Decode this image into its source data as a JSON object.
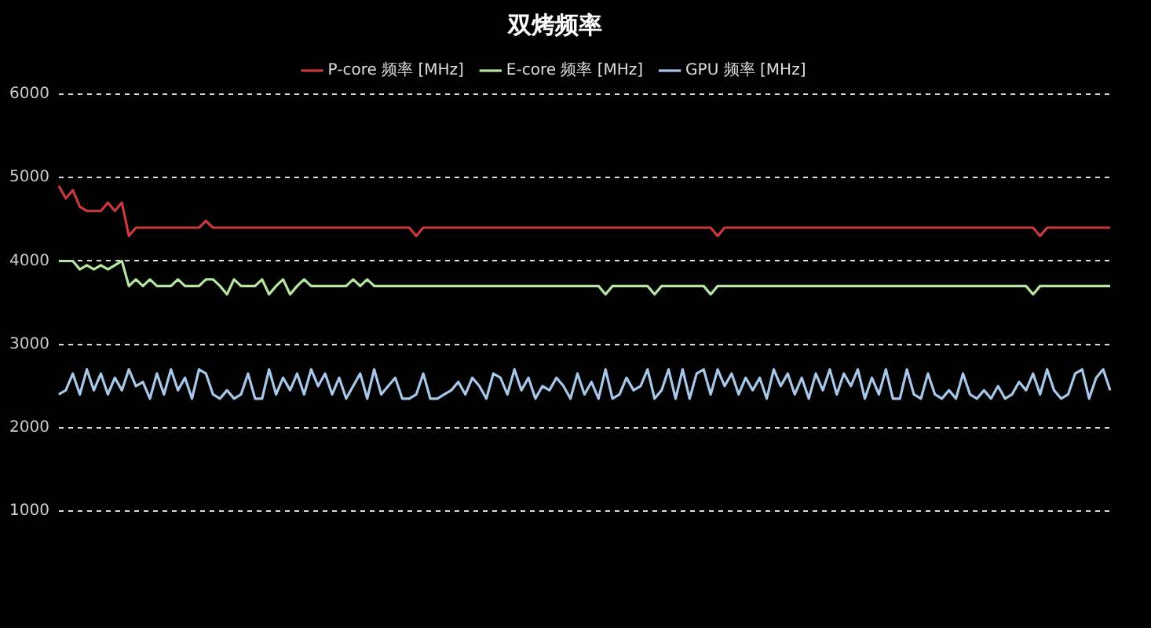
{
  "chart_data": {
    "type": "line",
    "title": "双烤频率",
    "categories": [
      null,
      null,
      null,
      null,
      null,
      null,
      null,
      null,
      null,
      null,
      null,
      null,
      null,
      null,
      null,
      null,
      null,
      null,
      null,
      null,
      null,
      null,
      null,
      null,
      null,
      null,
      null,
      null,
      null,
      null,
      null,
      null,
      null,
      null,
      null,
      null,
      null,
      null,
      null,
      null,
      null,
      null,
      null,
      null,
      null,
      null,
      null,
      null,
      null,
      null,
      null,
      null,
      null,
      null,
      null,
      null,
      null,
      null,
      null,
      null,
      null,
      null,
      null,
      null,
      null,
      null,
      null,
      null,
      null,
      null,
      null,
      null,
      null,
      null,
      null,
      null,
      null,
      null,
      null,
      null,
      null,
      null,
      null,
      null,
      null,
      null,
      null,
      null,
      null,
      null,
      null,
      null,
      null,
      null,
      null,
      null,
      null,
      null,
      null,
      null,
      null,
      null,
      null,
      null,
      null,
      null,
      null,
      null,
      null,
      null,
      null,
      null,
      null,
      null,
      null,
      null,
      null,
      null,
      null,
      null,
      null,
      null,
      null,
      null,
      null,
      null,
      null,
      null,
      null,
      null,
      null,
      null,
      null,
      null,
      null,
      null,
      null,
      null,
      null,
      null,
      null,
      null,
      null,
      null,
      null,
      null,
      null,
      null,
      null,
      null,
      null
    ],
    "series": [
      {
        "name": "P-core 频率 [MHz]",
        "color": "#c8393b",
        "values": [
          4900,
          4750,
          4850,
          4650,
          4600,
          4600,
          4600,
          4700,
          4600,
          4700,
          4300,
          4400,
          4400,
          4400,
          4400,
          4400,
          4400,
          4400,
          4400,
          4400,
          4400,
          4480,
          4400,
          4400,
          4400,
          4400,
          4400,
          4400,
          4400,
          4400,
          4400,
          4400,
          4400,
          4400,
          4400,
          4400,
          4400,
          4400,
          4400,
          4400,
          4400,
          4400,
          4400,
          4400,
          4400,
          4400,
          4400,
          4400,
          4400,
          4400,
          4400,
          4300,
          4400,
          4400,
          4400,
          4400,
          4400,
          4400,
          4400,
          4400,
          4400,
          4400,
          4400,
          4400,
          4400,
          4400,
          4400,
          4400,
          4400,
          4400,
          4400,
          4400,
          4400,
          4400,
          4400,
          4400,
          4400,
          4400,
          4400,
          4400,
          4400,
          4400,
          4400,
          4400,
          4400,
          4400,
          4400,
          4400,
          4400,
          4400,
          4400,
          4400,
          4400,
          4400,
          4300,
          4400,
          4400,
          4400,
          4400,
          4400,
          4400,
          4400,
          4400,
          4400,
          4400,
          4400,
          4400,
          4400,
          4400,
          4400,
          4400,
          4400,
          4400,
          4400,
          4400,
          4400,
          4400,
          4400,
          4400,
          4400,
          4400,
          4400,
          4400,
          4400,
          4400,
          4400,
          4400,
          4400,
          4400,
          4400,
          4400,
          4400,
          4400,
          4400,
          4400,
          4400,
          4400,
          4400,
          4400,
          4400,
          4300,
          4400,
          4400,
          4400,
          4400,
          4400,
          4400,
          4400,
          4400,
          4400,
          4400
        ]
      },
      {
        "name": "E-core 频率 [MHz]",
        "color": "#b5e5a0",
        "values": [
          4000,
          4000,
          4000,
          3900,
          3950,
          3900,
          3950,
          3900,
          3950,
          4000,
          3700,
          3780,
          3700,
          3780,
          3700,
          3700,
          3700,
          3780,
          3700,
          3700,
          3700,
          3780,
          3780,
          3700,
          3600,
          3780,
          3700,
          3700,
          3700,
          3780,
          3600,
          3700,
          3780,
          3600,
          3700,
          3780,
          3700,
          3700,
          3700,
          3700,
          3700,
          3700,
          3780,
          3700,
          3780,
          3700,
          3700,
          3700,
          3700,
          3700,
          3700,
          3700,
          3700,
          3700,
          3700,
          3700,
          3700,
          3700,
          3700,
          3700,
          3700,
          3700,
          3700,
          3700,
          3700,
          3700,
          3700,
          3700,
          3700,
          3700,
          3700,
          3700,
          3700,
          3700,
          3700,
          3700,
          3700,
          3700,
          3600,
          3700,
          3700,
          3700,
          3700,
          3700,
          3700,
          3600,
          3700,
          3700,
          3700,
          3700,
          3700,
          3700,
          3700,
          3600,
          3700,
          3700,
          3700,
          3700,
          3700,
          3700,
          3700,
          3700,
          3700,
          3700,
          3700,
          3700,
          3700,
          3700,
          3700,
          3700,
          3700,
          3700,
          3700,
          3700,
          3700,
          3700,
          3700,
          3700,
          3700,
          3700,
          3700,
          3700,
          3700,
          3700,
          3700,
          3700,
          3700,
          3700,
          3700,
          3700,
          3700,
          3700,
          3700,
          3700,
          3700,
          3700,
          3700,
          3700,
          3700,
          3600,
          3700,
          3700,
          3700,
          3700,
          3700,
          3700,
          3700,
          3700,
          3700,
          3700,
          3700
        ]
      },
      {
        "name": "GPU 频率 [MHz]",
        "color": "#a8c8ea",
        "values": [
          2400,
          2450,
          2650,
          2400,
          2700,
          2450,
          2650,
          2400,
          2600,
          2450,
          2700,
          2500,
          2550,
          2350,
          2650,
          2400,
          2700,
          2450,
          2600,
          2350,
          2700,
          2650,
          2400,
          2350,
          2450,
          2350,
          2400,
          2650,
          2350,
          2350,
          2700,
          2400,
          2600,
          2450,
          2650,
          2400,
          2700,
          2500,
          2650,
          2400,
          2600,
          2350,
          2500,
          2650,
          2350,
          2700,
          2400,
          2500,
          2600,
          2350,
          2350,
          2400,
          2650,
          2350,
          2350,
          2400,
          2450,
          2550,
          2400,
          2600,
          2500,
          2350,
          2650,
          2600,
          2400,
          2700,
          2450,
          2600,
          2350,
          2500,
          2450,
          2600,
          2500,
          2350,
          2650,
          2400,
          2550,
          2350,
          2700,
          2350,
          2400,
          2600,
          2450,
          2500,
          2700,
          2350,
          2450,
          2700,
          2350,
          2700,
          2350,
          2650,
          2700,
          2400,
          2700,
          2500,
          2650,
          2400,
          2600,
          2450,
          2600,
          2350,
          2700,
          2500,
          2650,
          2400,
          2600,
          2350,
          2650,
          2450,
          2700,
          2400,
          2650,
          2500,
          2700,
          2350,
          2600,
          2400,
          2700,
          2350,
          2350,
          2700,
          2400,
          2350,
          2650,
          2400,
          2350,
          2450,
          2350,
          2650,
          2400,
          2350,
          2450,
          2350,
          2500,
          2350,
          2400,
          2550,
          2450,
          2650,
          2400,
          2700,
          2450,
          2350,
          2400,
          2650,
          2700,
          2350,
          2600,
          2700,
          2450
        ]
      }
    ],
    "ylim": [
      1000,
      6000
    ],
    "yticks": [
      1000,
      2000,
      3000,
      4000,
      5000,
      6000
    ],
    "grid": "y",
    "legend": "top"
  }
}
